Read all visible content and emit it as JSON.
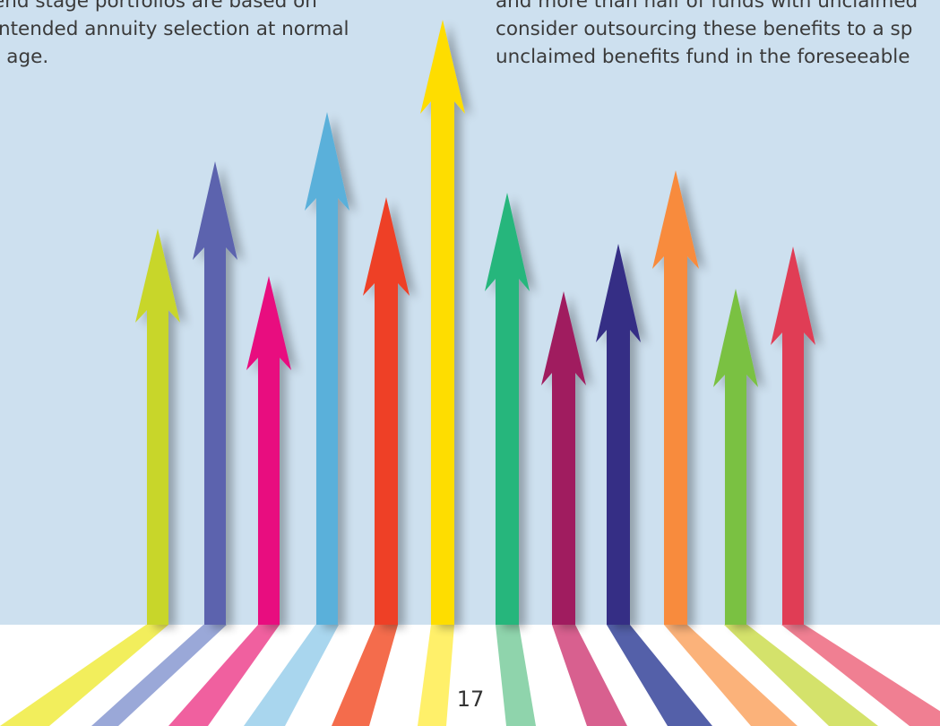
{
  "page": {
    "sky_color": "#cde0ef",
    "page_number": "17"
  },
  "text_left": {
    "lines": [
      "end stage portfolios are based on",
      "intended annuity selection at normal",
      "t age."
    ]
  },
  "text_right": {
    "lines": [
      "and more than half of funds with unclaimed",
      "consider outsourcing these benefits to a sp",
      "unclaimed benefits fund in the foreseeable"
    ]
  },
  "arrows": [
    {
      "name": "arrow-yellow-green",
      "color": "#c8d62b",
      "reflection": "#f2ee5c"
    },
    {
      "name": "arrow-slate-blue",
      "color": "#5b63ae",
      "reflection": "#9aa8d8"
    },
    {
      "name": "arrow-magenta",
      "color": "#e8097f",
      "reflection": "#f0609f"
    },
    {
      "name": "arrow-sky-blue",
      "color": "#5ab0da",
      "reflection": "#a9d6ee"
    },
    {
      "name": "arrow-red-orange",
      "color": "#ee3f27",
      "reflection": "#f46c4c"
    },
    {
      "name": "arrow-yellow",
      "color": "#fedd00",
      "reflection": "#fff06a"
    },
    {
      "name": "arrow-green",
      "color": "#27b67c",
      "reflection": "#8fd4ac"
    },
    {
      "name": "arrow-plum",
      "color": "#a01e5f",
      "reflection": "#d8608f"
    },
    {
      "name": "arrow-navy",
      "color": "#342d85",
      "reflection": "#5460a9"
    },
    {
      "name": "arrow-orange",
      "color": "#f88b3c",
      "reflection": "#fbb27a"
    },
    {
      "name": "arrow-lime",
      "color": "#7ac143",
      "reflection": "#d4e26b"
    },
    {
      "name": "arrow-crimson",
      "color": "#e03c55",
      "reflection": "#f07f92"
    }
  ]
}
